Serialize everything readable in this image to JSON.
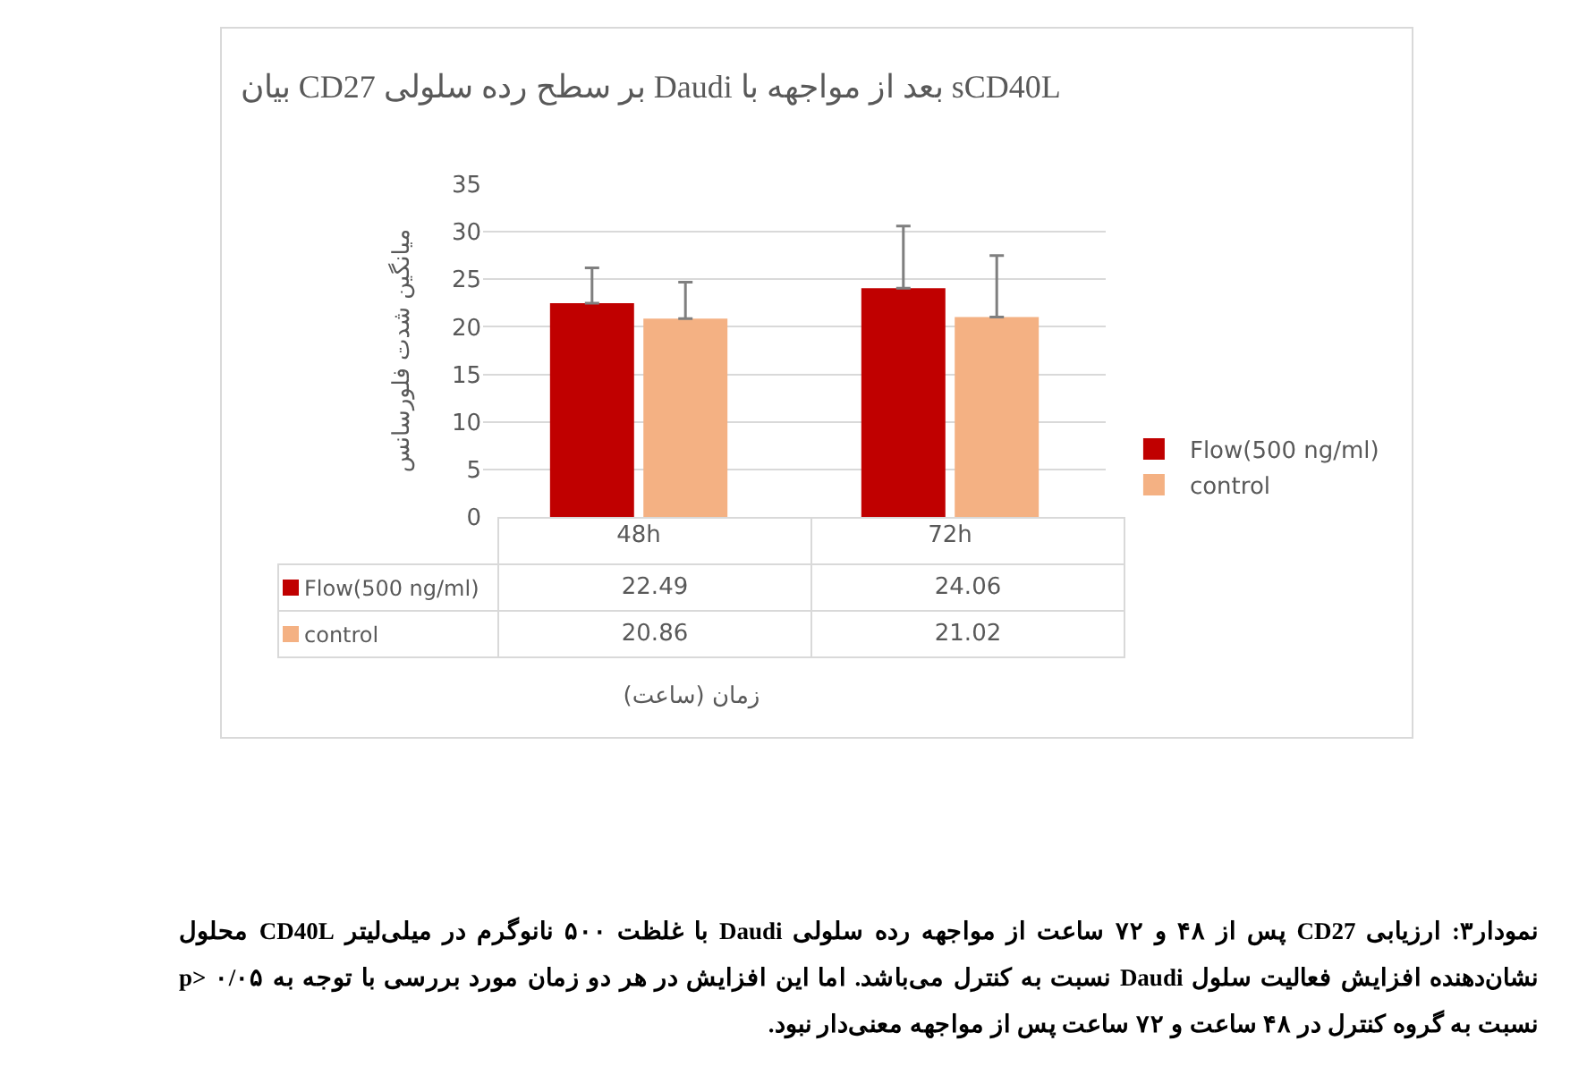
{
  "chart_data": {
    "type": "bar",
    "title": "بیان CD27 بر سطح رده سلولی Daudi بعد از مواجهه با sCD40L",
    "ylabel": "میانگین شدت فلورسانس",
    "categories": [
      "48h",
      "72h"
    ],
    "series": [
      {
        "name": "Flow(500 ng/ml)",
        "color": "#c00000",
        "values": [
          22.49,
          24.06
        ],
        "errors": [
          [
            22.49,
            26.2
          ],
          [
            24.06,
            30.6
          ]
        ]
      },
      {
        "name": "control",
        "color": "#f4b183",
        "values": [
          20.86,
          21.02
        ],
        "errors": [
          [
            20.86,
            24.7
          ],
          [
            21.02,
            27.5
          ]
        ]
      }
    ],
    "ylim": [
      0,
      35
    ],
    "yticks": [
      0,
      5,
      10,
      15,
      20,
      25,
      30,
      35
    ],
    "grid": "y",
    "legend": "right",
    "data_labels": true,
    "annotations": [
      "زمان (ساعت)",
      "نمودار۳: ارزیابی CD27 پس از ۴۸ و ۷۲ ساعت از مواجهه رده سلولی Daudi با غلظت ۵۰۰ نانوگرم در میلی‌لیتر CD40L محلول نشان‌دهنده افزایش فعالیت سلول Daudi نسبت به کنترل می‌باشد. اما این افزایش در هر دو زمان مورد بررسی با توجه به p> ۰/۰۵ نسبت به گروه کنترل در ۴۸ ساعت و ۷۲ ساعت پس از مواجهه معنی‌دار نبود."
    ]
  }
}
